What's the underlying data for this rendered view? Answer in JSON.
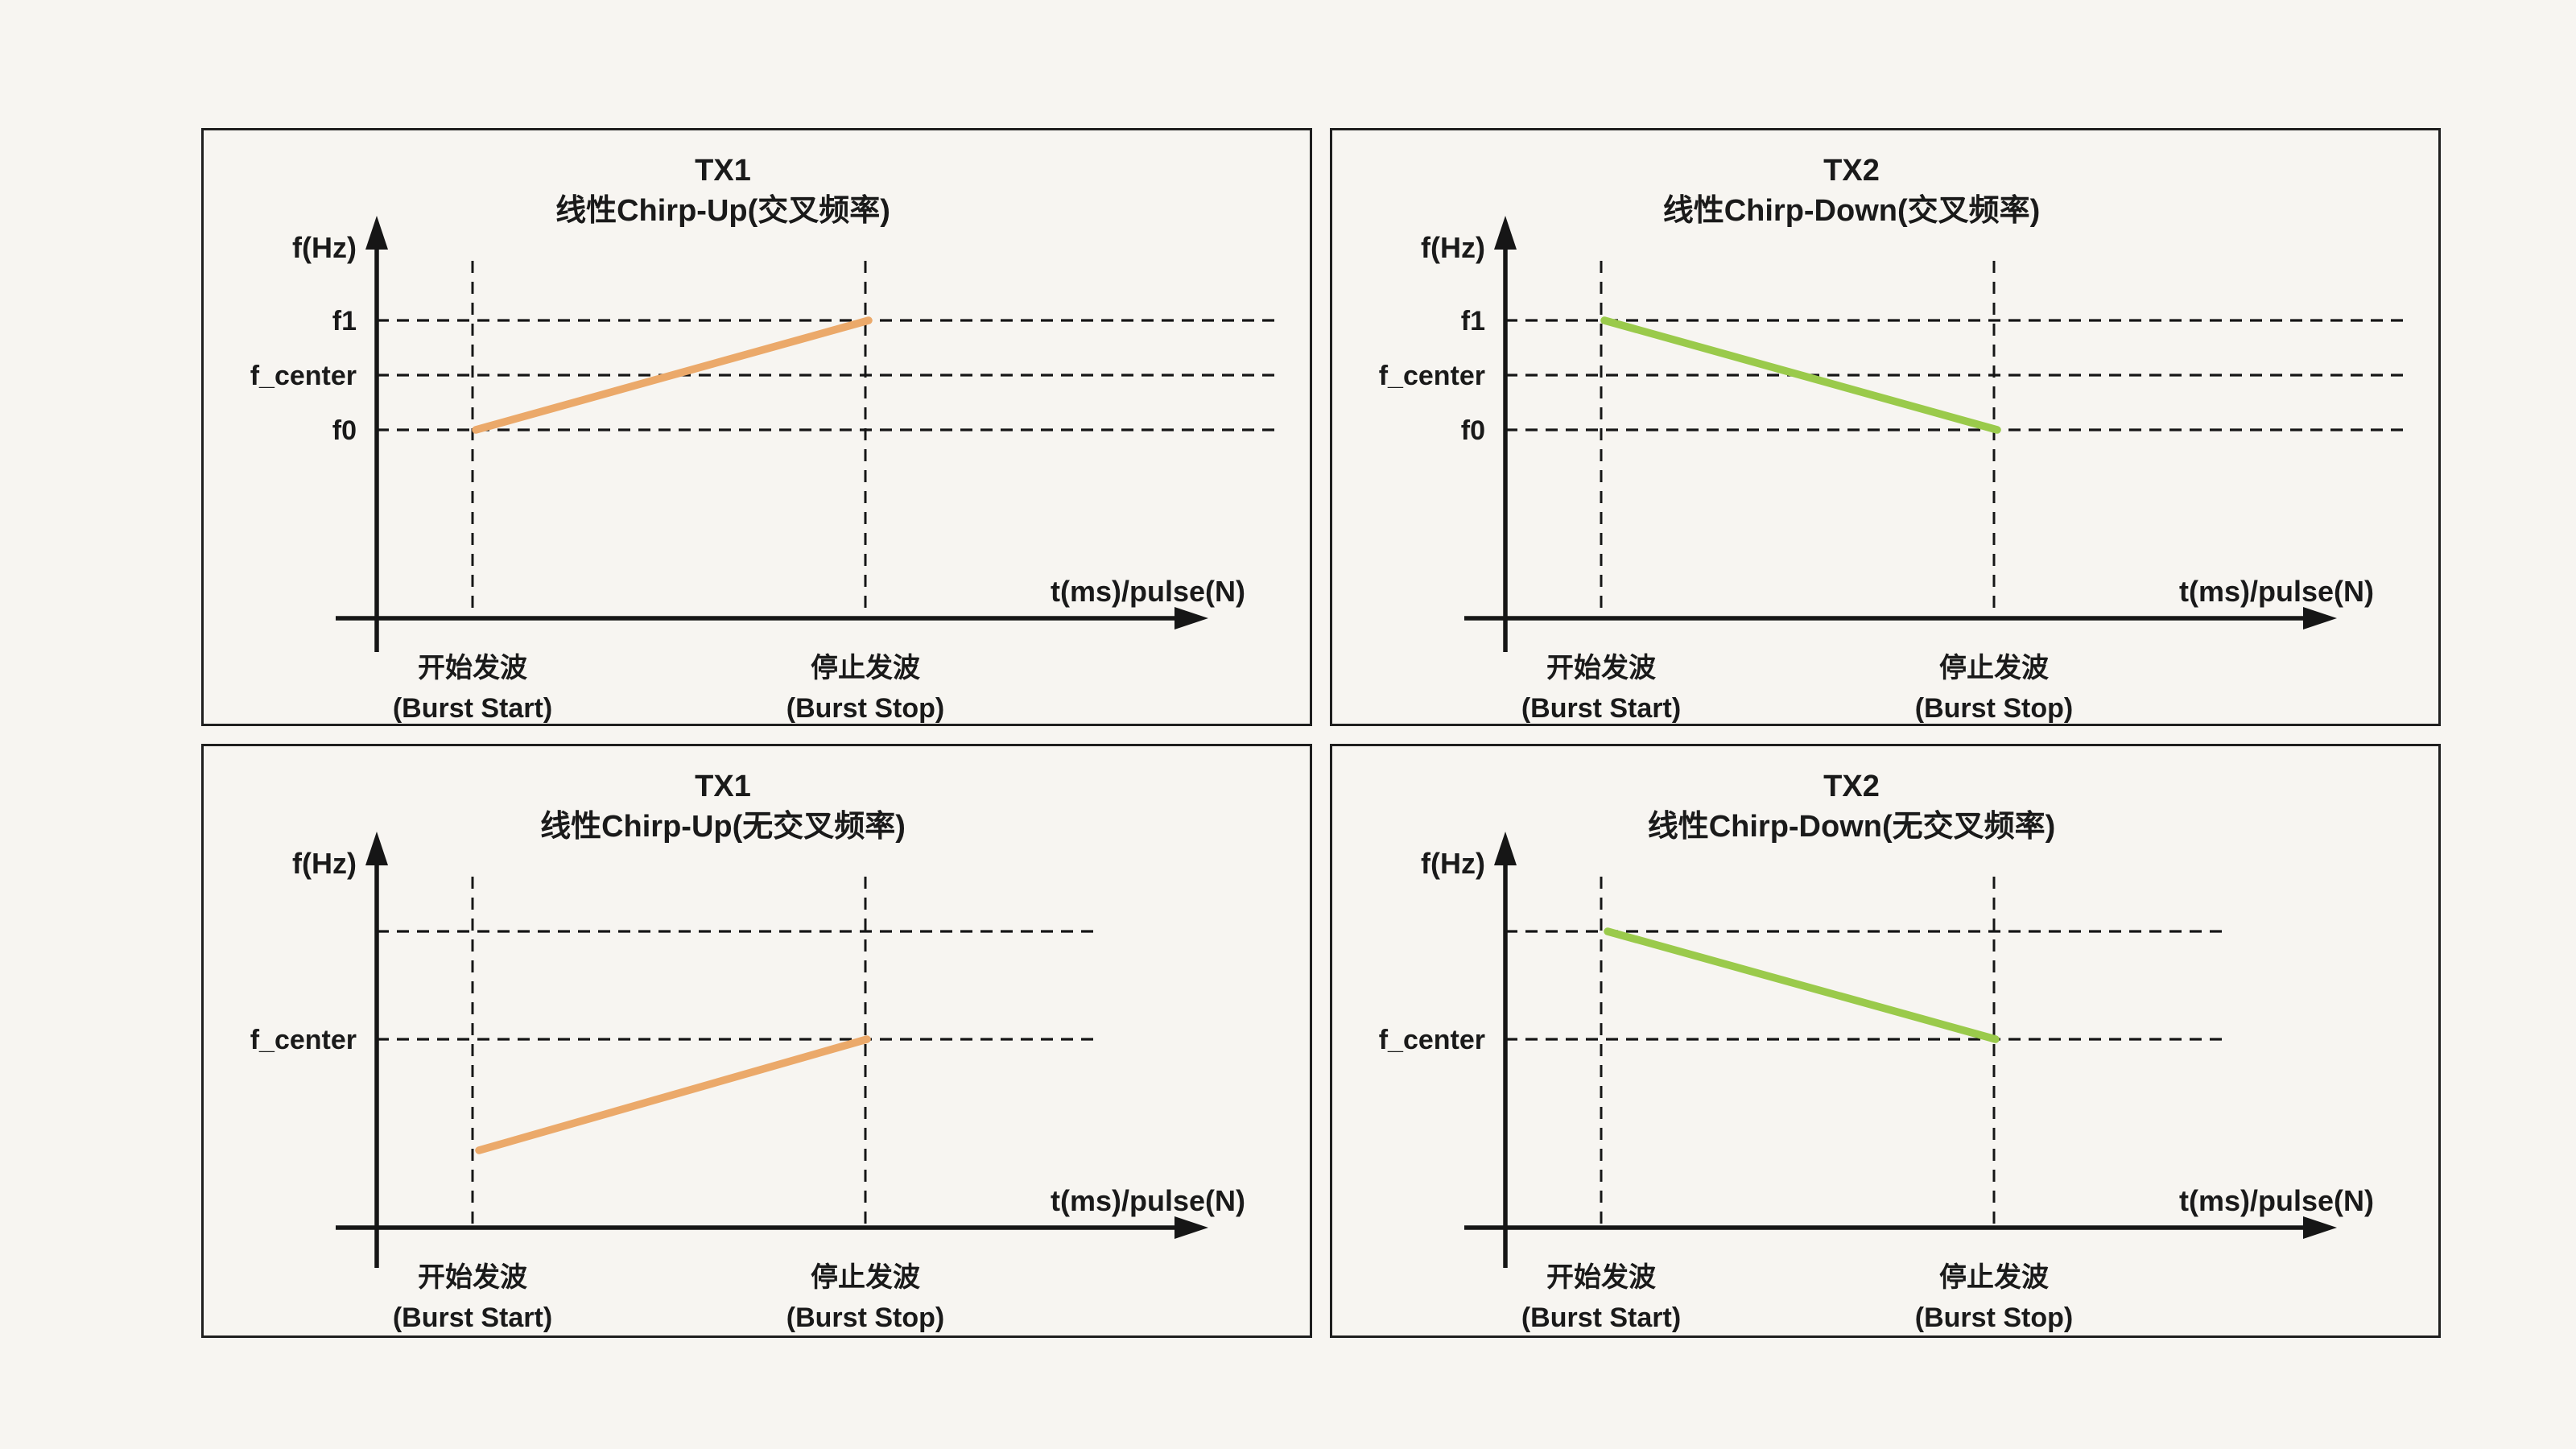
{
  "page": {
    "background": "#f7f5f1",
    "ink": "#1a1a1a"
  },
  "colors": {
    "orange": "#eba96a",
    "green": "#9aca4b"
  },
  "axis": {
    "y_label": "f(Hz)",
    "x_label": "t(ms)/pulse(N)"
  },
  "burst": {
    "start_zh": "开始发波",
    "start_en": "(Burst Start)",
    "stop_zh": "停止发波",
    "stop_en": "(Burst Stop)"
  },
  "freq_labels": {
    "f1": "f1",
    "f_center": "f_center",
    "f0": "f0"
  },
  "panels": [
    {
      "id": "tx1-cross",
      "position": "top-left",
      "title_line1": "TX1",
      "title_line2": "线性Chirp-Up(交叉频率)",
      "color_key": "orange",
      "variant": "cross",
      "direction": "up",
      "line_from": "f0 at burst start",
      "line_to": "f1 at burst stop"
    },
    {
      "id": "tx2-cross",
      "position": "top-right",
      "title_line1": "TX2",
      "title_line2": "线性Chirp-Down(交叉频率)",
      "color_key": "green",
      "variant": "cross",
      "direction": "down",
      "line_from": "f1 at burst start",
      "line_to": "f0 at burst stop"
    },
    {
      "id": "tx1-nocross",
      "position": "bottom-left",
      "title_line1": "TX1",
      "title_line2": "线性Chirp-Up(无交叉频率)",
      "color_key": "orange",
      "variant": "nocross",
      "direction": "up",
      "line_from": "below f_center at burst start",
      "line_to": "f_center at burst stop"
    },
    {
      "id": "tx2-nocross",
      "position": "bottom-right",
      "title_line1": "TX2",
      "title_line2": "线性Chirp-Down(无交叉频率)",
      "color_key": "green",
      "variant": "nocross",
      "direction": "down",
      "line_from": "above f_center at burst start",
      "line_to": "f_center at burst stop"
    }
  ]
}
